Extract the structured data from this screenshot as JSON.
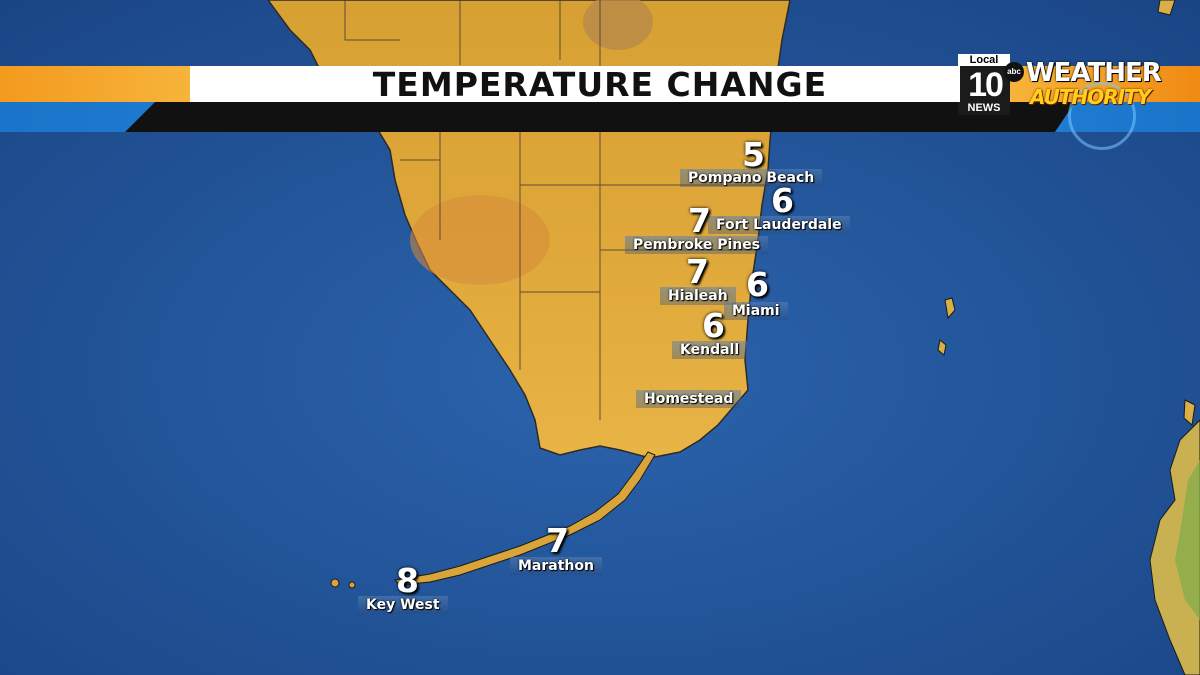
{
  "header": {
    "title": "TEMPERATURE CHANGE",
    "station": {
      "top": "Local",
      "number": "10",
      "bottom": "NEWS",
      "network": "abc"
    },
    "brand": {
      "line1": "WEATHER",
      "line2": "AUTHORITY"
    }
  },
  "cities": [
    {
      "name": "Pompano Beach",
      "value": "5"
    },
    {
      "name": "Fort Lauderdale",
      "value": "6"
    },
    {
      "name": "Pembroke Pines",
      "value": "7"
    },
    {
      "name": "Hialeah",
      "value": "7"
    },
    {
      "name": "Miami",
      "value": "6"
    },
    {
      "name": "Kendall",
      "value": "6"
    },
    {
      "name": "Homestead",
      "value": ""
    },
    {
      "name": "Marathon",
      "value": "7"
    },
    {
      "name": "Key West",
      "value": "8"
    }
  ],
  "colors": {
    "ocean": "#1f4f8f",
    "land": "#e2a93a",
    "land_warm": "#d98a3a",
    "land_cool": "#d9b048"
  }
}
